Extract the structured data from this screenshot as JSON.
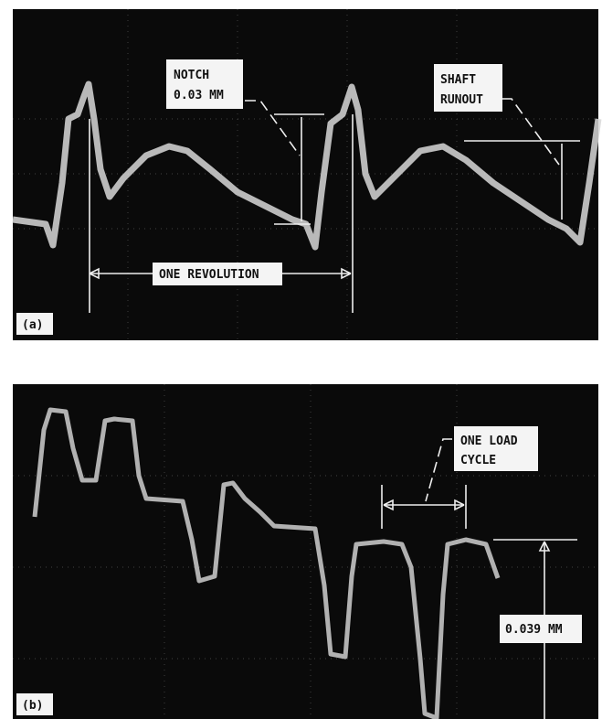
{
  "panel_a": {
    "label": "(a)",
    "notch": [
      "NOTCH",
      "0.03 MM"
    ],
    "shaft_runout": [
      "SHAFT",
      "RUNOUT"
    ],
    "one_revolution": "ONE REVOLUTION"
  },
  "panel_b": {
    "label": "(b)",
    "one_load_cycle": [
      "ONE LOAD",
      "CYCLE"
    ],
    "amplitude": "0.039 MM"
  }
}
